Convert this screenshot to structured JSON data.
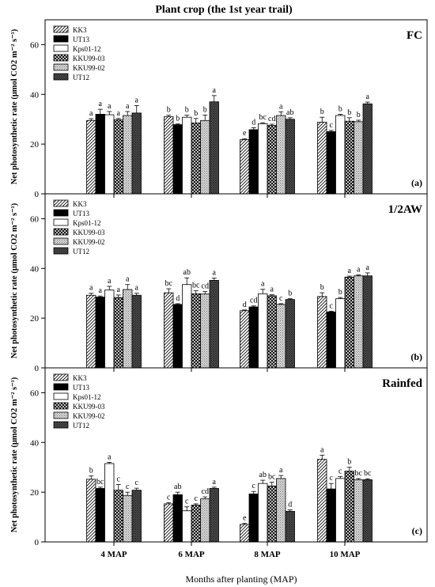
{
  "title": "Plant crop (the 1st year trail)",
  "chart_data": {
    "type": "bar",
    "title": "Plant crop (the 1st year trail)",
    "xlabel": "Months after planting (MAP)",
    "ylabel": "Net photosynthetic rate (μmol CO2 m⁻² s⁻¹)",
    "categories": [
      "4 MAP",
      "6 MAP",
      "8 MAP",
      "10 MAP"
    ],
    "ylim": [
      0,
      70
    ],
    "yticks": [
      0,
      20,
      40,
      60
    ],
    "legend": [
      "KK3",
      "UT13",
      "Kps01-12",
      "KKU99-03",
      "KKU99-02",
      "UT12"
    ],
    "panels": [
      {
        "condition": "FC",
        "panel_label": "(a)",
        "show_legend": true,
        "series": [
          {
            "name": "KK3",
            "values": [
              29.5,
              31,
              21.8,
              28.8
            ],
            "errors": [
              0.7,
              0.6,
              0.4,
              2.0
            ],
            "letters": [
              "a",
              "b",
              "e",
              "b"
            ]
          },
          {
            "name": "UT13",
            "values": [
              32,
              27.8,
              25.8,
              25
            ],
            "errors": [
              2.0,
              0.3,
              0.8,
              0.5
            ],
            "letters": [
              "a",
              "b",
              "d",
              "c"
            ]
          },
          {
            "name": "Kps01-12",
            "values": [
              31.8,
              30.8,
              28.2,
              31.5
            ],
            "errors": [
              1.3,
              0.8,
              0.4,
              0.5
            ],
            "letters": [
              "a",
              "b",
              "bc",
              "b"
            ]
          },
          {
            "name": "KKU99-03",
            "values": [
              29.8,
              28.5,
              27.5,
              29.2
            ],
            "errors": [
              0.5,
              1.8,
              0.5,
              1.4
            ],
            "letters": [
              "a",
              "b",
              "cd",
              "b"
            ]
          },
          {
            "name": "KKU99-02",
            "values": [
              31.5,
              29.5,
              31.5,
              29
            ],
            "errors": [
              1.6,
              2.2,
              1.5,
              0.6
            ],
            "letters": [
              "a",
              "b",
              "a",
              "b"
            ]
          },
          {
            "name": "UT12",
            "values": [
              32.5,
              37,
              30,
              36.2
            ],
            "errors": [
              3.0,
              2.5,
              0.6,
              0.7
            ],
            "letters": [
              "a",
              "a",
              "ab",
              "a"
            ]
          }
        ]
      },
      {
        "condition": "1/2AW",
        "panel_label": "(b)",
        "show_legend": true,
        "series": [
          {
            "name": "KK3",
            "values": [
              29.2,
              30.2,
              23,
              28.7
            ],
            "errors": [
              0.8,
              1.6,
              0.3,
              1.5
            ],
            "letters": [
              "a",
              "bc",
              "d",
              "b"
            ]
          },
          {
            "name": "UT13",
            "values": [
              28.5,
              25.5,
              24.5,
              22.5
            ],
            "errors": [
              0.4,
              0.3,
              0.4,
              0.3
            ],
            "letters": [
              "a",
              "d",
              "cd",
              "c"
            ]
          },
          {
            "name": "Kps01-12",
            "values": [
              31.3,
              33.5,
              29.8,
              27.8
            ],
            "errors": [
              1.5,
              2.7,
              1.8,
              0.5
            ],
            "letters": [
              "a",
              "ab",
              "a",
              "b"
            ]
          },
          {
            "name": "KKU99-03",
            "values": [
              28.3,
              29.8,
              29,
              36.5
            ],
            "errors": [
              1.0,
              1.2,
              0.4,
              0.4
            ],
            "letters": [
              "a",
              "bc",
              "a",
              "a"
            ]
          },
          {
            "name": "KKU99-02",
            "values": [
              31.5,
              29.7,
              25.5,
              37
            ],
            "errors": [
              2.0,
              1.0,
              0.3,
              0.4
            ],
            "letters": [
              "a",
              "cd",
              "c",
              "a"
            ]
          },
          {
            "name": "UT12",
            "values": [
              29.2,
              35.2,
              27.5,
              37
            ],
            "errors": [
              0.8,
              0.9,
              0.4,
              1.2
            ],
            "letters": [
              "a",
              "a",
              "b",
              "a"
            ]
          }
        ]
      },
      {
        "condition": "Rainfed",
        "panel_label": "(c)",
        "show_legend": true,
        "series": [
          {
            "name": "KK3",
            "values": [
              25.2,
              15.3,
              7,
              33.2
            ],
            "errors": [
              1.3,
              0.5,
              0.5,
              1.7
            ],
            "letters": [
              "b",
              "c",
              "e",
              "a"
            ]
          },
          {
            "name": "UT13",
            "values": [
              21.5,
              19,
              19.3,
              21.3
            ],
            "errors": [
              0.5,
              1.0,
              1.0,
              2.2
            ],
            "letters": [
              "bc",
              "ab",
              "c",
              "c"
            ]
          },
          {
            "name": "Kps01-12",
            "values": [
              31.5,
              12.5,
              23.5,
              25.5
            ],
            "errors": [
              0.5,
              1.6,
              1.3,
              0.8
            ],
            "letters": [
              "a",
              "c",
              "ab",
              "c"
            ]
          },
          {
            "name": "KKU99-03",
            "values": [
              20.8,
              14.8,
              22.5,
              28.5
            ],
            "errors": [
              2.3,
              0.5,
              1.5,
              1.5
            ],
            "letters": [
              "c",
              "c",
              "bc",
              "b"
            ]
          },
          {
            "name": "KKU99-02",
            "values": [
              18.7,
              17.3,
              25.5,
              25
            ],
            "errors": [
              1.3,
              0.8,
              1.2,
              0.5
            ],
            "letters": [
              "c",
              "cd",
              "a",
              "bc"
            ]
          },
          {
            "name": "UT12",
            "values": [
              20.8,
              21.5,
              12.3,
              25
            ],
            "errors": [
              0.8,
              0.5,
              0.6,
              0.4
            ],
            "letters": [
              "c",
              "a",
              "d",
              "bc"
            ]
          }
        ]
      }
    ]
  }
}
